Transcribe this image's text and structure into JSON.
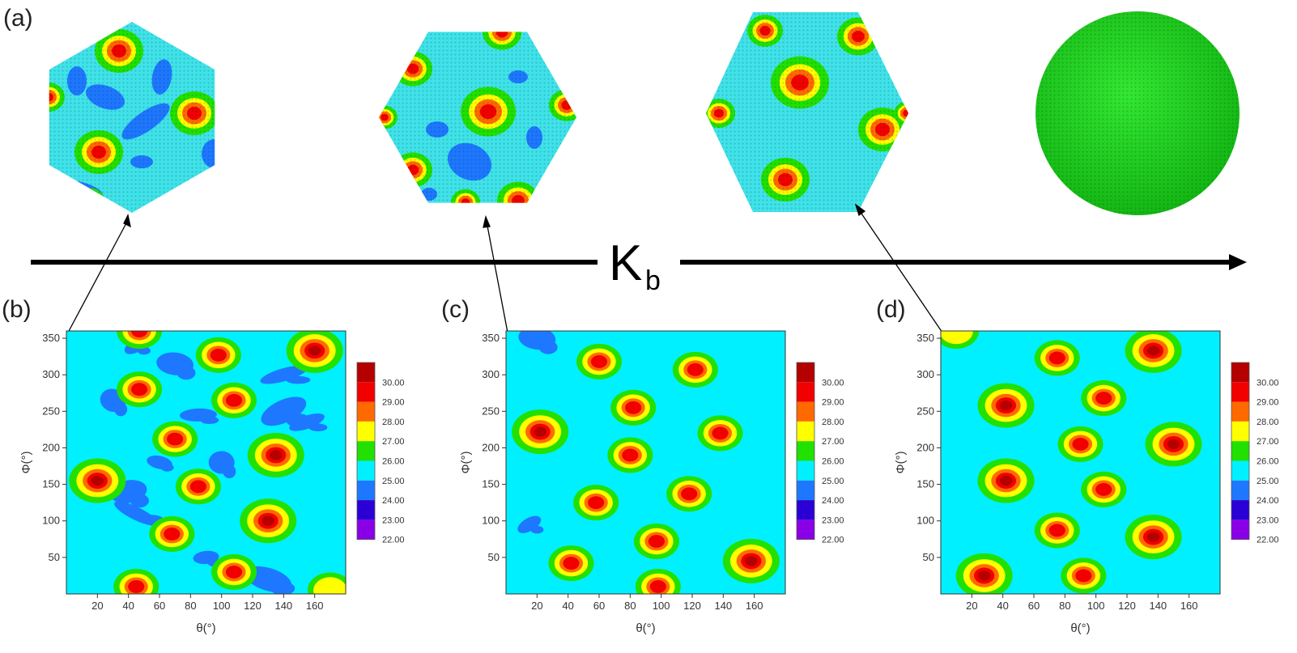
{
  "figure": {
    "top_panel_label": "(a)",
    "arrow_symbol": "K",
    "arrow_subscript": "b"
  },
  "chart_data": [
    {
      "type": "heatmap",
      "panel_label": "(b)",
      "xlabel": "θ(°)",
      "ylabel": "Φ(°)",
      "xlim": [
        0,
        180
      ],
      "ylim": [
        0,
        360
      ],
      "xticks": [
        20,
        40,
        60,
        80,
        100,
        120,
        140,
        160
      ],
      "yticks": [
        50,
        100,
        150,
        200,
        250,
        300,
        350
      ],
      "colorbar_levels": [
        "30.00",
        "29.00",
        "28.00",
        "27.00",
        "26.00",
        "25.00",
        "24.00",
        "23.00",
        "22.00"
      ],
      "background_level": 25.5,
      "peaks": [
        {
          "theta": 47,
          "phi": 360,
          "level": 29.0
        },
        {
          "theta": 47,
          "phi": 280,
          "level": 29.5
        },
        {
          "theta": 98,
          "phi": 327,
          "level": 29.5
        },
        {
          "theta": 108,
          "phi": 265,
          "level": 29.5
        },
        {
          "theta": 160,
          "phi": 333,
          "level": 30.0
        },
        {
          "theta": 70,
          "phi": 212,
          "level": 29.5
        },
        {
          "theta": 135,
          "phi": 190,
          "level": 30.0
        },
        {
          "theta": 20,
          "phi": 155,
          "level": 30.0
        },
        {
          "theta": 85,
          "phi": 147,
          "level": 29.5
        },
        {
          "theta": 68,
          "phi": 82,
          "level": 29.5
        },
        {
          "theta": 130,
          "phi": 100,
          "level": 30.0
        },
        {
          "theta": 108,
          "phi": 30,
          "level": 29.5
        },
        {
          "theta": 45,
          "phi": 10,
          "level": 29.5
        },
        {
          "theta": 170,
          "phi": 5,
          "level": 27.5
        }
      ],
      "low_regions": [
        {
          "theta": 45,
          "phi": 340,
          "level": 25.0
        },
        {
          "theta": 70,
          "phi": 315,
          "level": 25.0
        },
        {
          "theta": 140,
          "phi": 300,
          "level": 25.0
        },
        {
          "theta": 30,
          "phi": 265,
          "level": 25.0
        },
        {
          "theta": 85,
          "phi": 245,
          "level": 25.0
        },
        {
          "theta": 140,
          "phi": 250,
          "level": 25.0
        },
        {
          "theta": 60,
          "phi": 180,
          "level": 25.0
        },
        {
          "theta": 40,
          "phi": 140,
          "level": 25.0
        },
        {
          "theta": 45,
          "phi": 110,
          "level": 25.0
        },
        {
          "theta": 100,
          "phi": 180,
          "level": 25.0
        },
        {
          "theta": 155,
          "phi": 235,
          "level": 25.0
        },
        {
          "theta": 130,
          "phi": 20,
          "level": 25.0
        },
        {
          "theta": 90,
          "phi": 50,
          "level": 25.0
        }
      ]
    },
    {
      "type": "heatmap",
      "panel_label": "(c)",
      "xlabel": "θ(°)",
      "ylabel": "Φ(°)",
      "xlim": [
        0,
        180
      ],
      "ylim": [
        0,
        360
      ],
      "xticks": [
        20,
        40,
        60,
        80,
        100,
        120,
        140,
        160
      ],
      "yticks": [
        50,
        100,
        150,
        200,
        250,
        300,
        350
      ],
      "colorbar_levels": [
        "30.00",
        "29.00",
        "28.00",
        "27.00",
        "26.00",
        "25.00",
        "24.00",
        "23.00",
        "22.00"
      ],
      "background_level": 26.0,
      "peaks": [
        {
          "theta": 60,
          "phi": 318,
          "level": 29.5
        },
        {
          "theta": 122,
          "phi": 307,
          "level": 29.5
        },
        {
          "theta": 82,
          "phi": 255,
          "level": 29.5
        },
        {
          "theta": 22,
          "phi": 222,
          "level": 30.0
        },
        {
          "theta": 138,
          "phi": 220,
          "level": 29.5
        },
        {
          "theta": 80,
          "phi": 190,
          "level": 29.5
        },
        {
          "theta": 58,
          "phi": 125,
          "level": 29.5
        },
        {
          "theta": 118,
          "phi": 137,
          "level": 29.5
        },
        {
          "theta": 97,
          "phi": 72,
          "level": 29.5
        },
        {
          "theta": 42,
          "phi": 42,
          "level": 29.5
        },
        {
          "theta": 158,
          "phi": 45,
          "level": 30.0
        },
        {
          "theta": 98,
          "phi": 10,
          "level": 29.5
        }
      ],
      "low_regions": [
        {
          "theta": 15,
          "phi": 95,
          "level": 25.0
        },
        {
          "theta": 20,
          "phi": 350,
          "level": 25.0
        }
      ]
    },
    {
      "type": "heatmap",
      "panel_label": "(d)",
      "xlabel": "θ(°)",
      "ylabel": "Φ(°)",
      "xlim": [
        0,
        180
      ],
      "ylim": [
        0,
        360
      ],
      "xticks": [
        20,
        40,
        60,
        80,
        100,
        120,
        140,
        160
      ],
      "yticks": [
        50,
        100,
        150,
        200,
        250,
        300,
        350
      ],
      "colorbar_levels": [
        "30.00",
        "29.00",
        "28.00",
        "27.00",
        "26.00",
        "25.00",
        "24.00",
        "23.00",
        "22.00"
      ],
      "background_level": 26.0,
      "peaks": [
        {
          "theta": 75,
          "phi": 323,
          "level": 29.5
        },
        {
          "theta": 137,
          "phi": 333,
          "level": 30.0
        },
        {
          "theta": 42,
          "phi": 258,
          "level": 30.0
        },
        {
          "theta": 105,
          "phi": 268,
          "level": 29.5
        },
        {
          "theta": 90,
          "phi": 205,
          "level": 29.5
        },
        {
          "theta": 150,
          "phi": 205,
          "level": 30.0
        },
        {
          "theta": 42,
          "phi": 155,
          "level": 30.0
        },
        {
          "theta": 105,
          "phi": 143,
          "level": 29.5
        },
        {
          "theta": 75,
          "phi": 87,
          "level": 29.5
        },
        {
          "theta": 137,
          "phi": 78,
          "level": 30.0
        },
        {
          "theta": 28,
          "phi": 25,
          "level": 30.0
        },
        {
          "theta": 92,
          "phi": 25,
          "level": 29.5
        },
        {
          "theta": 10,
          "phi": 360,
          "level": 27.5
        }
      ],
      "low_regions": []
    }
  ],
  "colors": {
    "30": "#b50000",
    "29": "#f20000",
    "28": "#ff6a00",
    "27": "#ffff00",
    "26": "#22e000",
    "25": "#00f0ff",
    "24": "#1e78ff",
    "23": "#2a00d6",
    "22": "#8a00e6",
    "sphere_green": "#22dd22",
    "shell_cyan": "#3fe3ea"
  }
}
